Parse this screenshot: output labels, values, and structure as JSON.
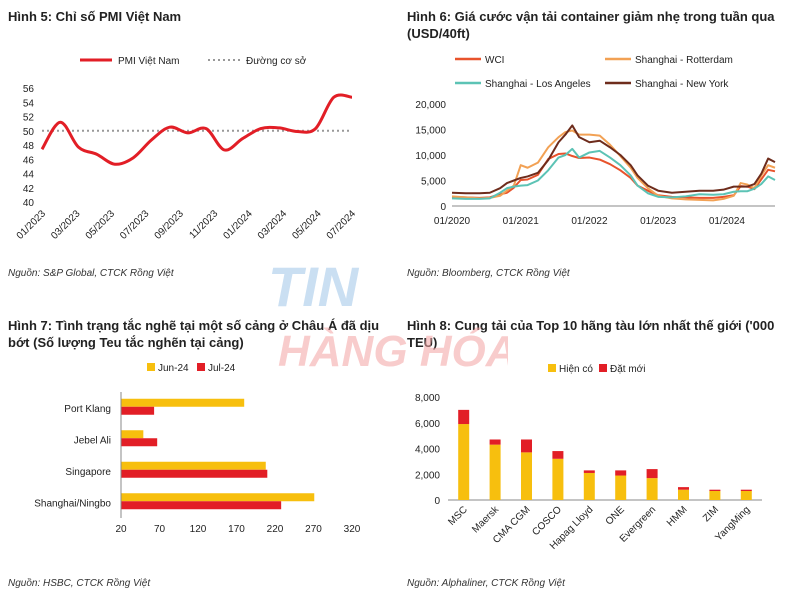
{
  "figures": {
    "fig5": {
      "title": "Hình 5: Chỉ số PMI Việt Nam",
      "source": "Nguồn: S&P Global, CTCK Rồng Việt"
    },
    "fig6": {
      "title": "Hình 6: Giá cước vận tải container giảm nhẹ trong tuần qua",
      "title2": "(USD/40ft)",
      "source": "Nguồn: Bloomberg, CTCK Rồng Việt"
    },
    "fig7": {
      "title": "Hình 7: Tình trạng tắc nghẽ tại một số cảng ở Châu Á đã dịu",
      "title2": "bớt (Số lượng Teu tắc nghẽn tại cảng)",
      "source": "Nguồn: HSBC, CTCK Rồng Việt"
    },
    "fig8": {
      "title": "Hình 8: Cung tải của Top 10 hãng tàu lớn nhất thế giới ('000",
      "title2": "TEU)",
      "source": "Nguồn: Alphaliner, CTCK Rồng Việt"
    }
  },
  "watermark": {
    "line1": "TIN",
    "line2": "HÀNG HÓA"
  },
  "colors": {
    "red": "#e21e26",
    "yellow": "#f7bf0e",
    "grey": "#999999",
    "wci": "#e8532c",
    "rotterdam": "#f2a154",
    "la": "#5cc3b5",
    "ny": "#6e2c1c"
  },
  "chart_data": [
    {
      "id": "fig5",
      "type": "line",
      "x_ticks": [
        "01/2023",
        "03/2023",
        "05/2023",
        "07/2023",
        "09/2023",
        "11/2023",
        "01/2024",
        "03/2024",
        "05/2024",
        "07/2024"
      ],
      "ylim": [
        40,
        56
      ],
      "yticks": [
        40,
        42,
        44,
        46,
        48,
        50,
        52,
        54,
        56
      ],
      "series": [
        {
          "name": "PMI Việt Nam",
          "color": "#e21e26",
          "style": "solid",
          "values": [
            47.4,
            51.2,
            47.7,
            46.7,
            45.3,
            46.2,
            48.7,
            50.5,
            49.7,
            50.3,
            47.3,
            48.9,
            50.3,
            50.4,
            49.9,
            50.3,
            54.7,
            54.7
          ]
        },
        {
          "name": "Đường cơ sở",
          "color": "#999999",
          "style": "dotted",
          "values": [
            50,
            50,
            50,
            50,
            50,
            50,
            50,
            50,
            50,
            50,
            50,
            50,
            50,
            50,
            50,
            50,
            50,
            50
          ]
        }
      ]
    },
    {
      "id": "fig6",
      "type": "line",
      "x_ticks": [
        "01/2020",
        "01/2021",
        "01/2022",
        "01/2023",
        "01/2024"
      ],
      "ylim": [
        0,
        20000
      ],
      "yticks": [
        0,
        5000,
        10000,
        15000,
        20000
      ],
      "ytick_labels": [
        "0",
        "5,000",
        "10,000",
        "15,000",
        "20,000"
      ],
      "series": [
        {
          "name": "WCI",
          "color": "#e8532c",
          "x": [
            0,
            0.2,
            0.4,
            0.55,
            0.7,
            0.8,
            0.9,
            1.0,
            1.1,
            1.25,
            1.4,
            1.55,
            1.65,
            1.75,
            1.85,
            2.0,
            2.15,
            2.3,
            2.45,
            2.6,
            2.7,
            2.85,
            3.0,
            3.2,
            3.4,
            3.6,
            3.8,
            3.95,
            4.1,
            4.2,
            4.3,
            4.4,
            4.5,
            4.6,
            4.7
          ],
          "values": [
            1800,
            1700,
            1600,
            1700,
            2300,
            2600,
            3600,
            5100,
            5200,
            6100,
            9200,
            10200,
            10300,
            9800,
            9400,
            9500,
            9100,
            8200,
            7000,
            5500,
            4000,
            3000,
            2100,
            1800,
            1700,
            1600,
            1600,
            1800,
            2100,
            3900,
            3800,
            3300,
            5200,
            7100,
            6800
          ]
        },
        {
          "name": "Shanghai - Rotterdam",
          "color": "#f2a154",
          "x": [
            0,
            0.2,
            0.4,
            0.55,
            0.7,
            0.8,
            0.9,
            1.0,
            1.1,
            1.25,
            1.4,
            1.55,
            1.65,
            1.75,
            1.85,
            2.0,
            2.15,
            2.3,
            2.45,
            2.6,
            2.7,
            2.85,
            3.0,
            3.2,
            3.4,
            3.6,
            3.8,
            3.95,
            4.1,
            4.2,
            4.3,
            4.4,
            4.5,
            4.6,
            4.7
          ],
          "values": [
            1900,
            1700,
            1500,
            1600,
            2000,
            3000,
            4000,
            8000,
            7500,
            8500,
            11500,
            13500,
            14500,
            14800,
            14000,
            14000,
            13800,
            12000,
            9800,
            7500,
            5500,
            3500,
            2000,
            1500,
            1300,
            1200,
            1100,
            1400,
            2000,
            4500,
            4200,
            3500,
            6000,
            8000,
            7500
          ]
        },
        {
          "name": "Shanghai - Los Angeles",
          "color": "#5cc3b5",
          "x": [
            0,
            0.2,
            0.4,
            0.55,
            0.7,
            0.8,
            0.9,
            1.0,
            1.1,
            1.25,
            1.4,
            1.55,
            1.65,
            1.75,
            1.85,
            2.0,
            2.15,
            2.3,
            2.45,
            2.6,
            2.7,
            2.85,
            3.0,
            3.2,
            3.4,
            3.6,
            3.8,
            3.95,
            4.1,
            4.2,
            4.3,
            4.4,
            4.5,
            4.6,
            4.7
          ],
          "values": [
            1500,
            1400,
            1400,
            1500,
            2600,
            3500,
            3800,
            4000,
            4100,
            5000,
            7000,
            9500,
            10000,
            11200,
            9500,
            10500,
            10800,
            9500,
            8000,
            6000,
            4000,
            2500,
            1800,
            1700,
            1900,
            2300,
            2200,
            2300,
            2800,
            2900,
            2900,
            3400,
            4300,
            5800,
            5100
          ]
        },
        {
          "name": "Shanghai - New York",
          "color": "#6e2c1c",
          "x": [
            0,
            0.2,
            0.4,
            0.55,
            0.7,
            0.8,
            0.9,
            1.0,
            1.1,
            1.25,
            1.4,
            1.55,
            1.65,
            1.75,
            1.85,
            2.0,
            2.15,
            2.3,
            2.45,
            2.6,
            2.7,
            2.85,
            3.0,
            3.2,
            3.4,
            3.6,
            3.8,
            3.95,
            4.1,
            4.2,
            4.3,
            4.4,
            4.5,
            4.6,
            4.7
          ],
          "values": [
            2600,
            2500,
            2500,
            2600,
            3500,
            4500,
            5000,
            5500,
            5800,
            6500,
            9000,
            12500,
            14000,
            15800,
            13500,
            12500,
            12800,
            11500,
            10000,
            8000,
            6000,
            4000,
            3000,
            2600,
            2800,
            3000,
            3000,
            3200,
            3800,
            3800,
            3800,
            4300,
            6300,
            9300,
            8600
          ]
        }
      ]
    },
    {
      "id": "fig7",
      "type": "bar-horizontal",
      "categories": [
        "Port Klang",
        "Jebel Ali",
        "Singapore",
        "Shanghai/Ningbo"
      ],
      "xlim": [
        20,
        320
      ],
      "xticks": [
        20,
        70,
        120,
        170,
        220,
        270,
        320
      ],
      "series": [
        {
          "name": "Jun-24",
          "color": "#f7bf0e",
          "values": [
            180,
            49,
            208,
            271
          ]
        },
        {
          "name": "Jul-24",
          "color": "#e21e26",
          "values": [
            63,
            67,
            210,
            228
          ]
        }
      ]
    },
    {
      "id": "fig8",
      "type": "bar-stacked",
      "categories": [
        "MSC",
        "Maersk",
        "CMA CGM",
        "COSCO",
        "Hapag Lloyd",
        "ONE",
        "Evergreen",
        "HMM",
        "ZIM",
        "YangMing"
      ],
      "ylim": [
        0,
        8000
      ],
      "yticks": [
        0,
        2000,
        4000,
        6000,
        8000
      ],
      "ytick_labels": [
        "0",
        "2,000",
        "4,000",
        "6,000",
        "8,000"
      ],
      "series": [
        {
          "name": "Hiện có",
          "color": "#f7bf0e",
          "values": [
            5900,
            4300,
            3700,
            3200,
            2100,
            1900,
            1700,
            800,
            700,
            700
          ]
        },
        {
          "name": "Đặt mới",
          "color": "#e21e26",
          "values": [
            1100,
            400,
            1000,
            600,
            200,
            400,
            700,
            200,
            100,
            100
          ]
        }
      ]
    }
  ]
}
